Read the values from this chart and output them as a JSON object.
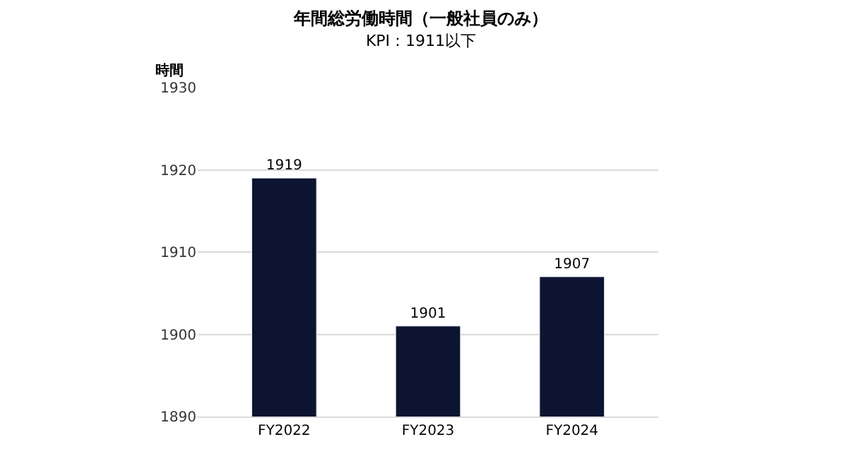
{
  "chart_data": {
    "type": "bar",
    "title": "年間総労働時間（一般社員のみ）",
    "subtitle": "KPI：1911以下",
    "ylabel": "時間",
    "categories": [
      "FY2022",
      "FY2023",
      "FY2024"
    ],
    "values": [
      1919,
      1901,
      1907
    ],
    "color": "#0c1431",
    "ylim": [
      1890,
      1930
    ],
    "yticks": [
      1890,
      1900,
      1910,
      1920,
      1930
    ],
    "grid": "y",
    "data_labels": true,
    "legend": false
  }
}
